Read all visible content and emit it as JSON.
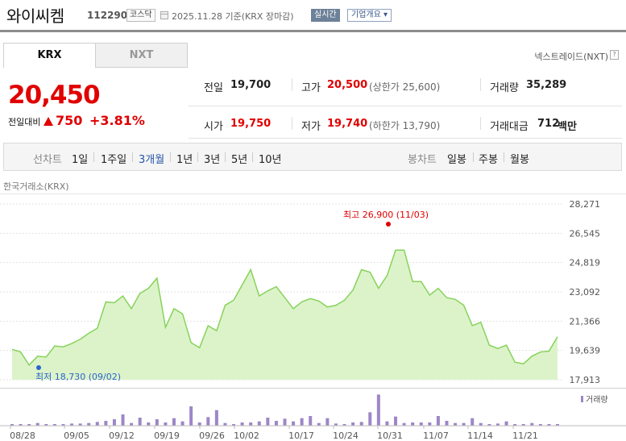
{
  "header": {
    "title": "와이씨켐",
    "code": "112290",
    "market": "코스닥",
    "date": "2025.11.28  기준(KRX 장마감)",
    "realtime": "실시간",
    "company": "기업개요"
  },
  "tabs": {
    "krx": "KRX",
    "nxt": "NXT",
    "nextrade": "넥스트레이드(NXT)"
  },
  "price": {
    "current": "20,450",
    "change_label": "전일대비",
    "change_value": "750",
    "change_rate": "+3.81%"
  },
  "summary": {
    "prev_label": "전일",
    "prev_value": "19,700",
    "high_label": "고가",
    "high_value": "20,500",
    "upper_limit": "(상한가 25,600)",
    "volume_label": "거래량",
    "volume_value": "35,289",
    "open_label": "시가",
    "open_value": "19,750",
    "low_label": "저가",
    "low_value": "19,740",
    "lower_limit": "(하한가 13,790)",
    "amount_label": "거래대금",
    "amount_value": "712",
    "amount_unit": "백만"
  },
  "period": {
    "line_label": "선차트",
    "line_options": [
      "1일",
      "1주일",
      "3개월",
      "1년",
      "3년",
      "5년",
      "10년"
    ],
    "active_line": "3개월",
    "candle_label": "봉차트",
    "candle_options": [
      "일봉",
      "주봉",
      "월봉"
    ]
  },
  "chart_source": "한국거래소(KRX)",
  "colors": {
    "up": "#e00000",
    "line": "#86d35a",
    "area": "#dcf3ca",
    "volume": "#9d86c8",
    "low_marker": "#2a66c8"
  },
  "chart_data": {
    "type": "area",
    "y_ticks": [
      "28,271",
      "26,545",
      "24,819",
      "23,092",
      "21,366",
      "19,639",
      "17,913"
    ],
    "ylim": [
      17913,
      28271
    ],
    "x_tick_labels": [
      "08/28",
      "09/05",
      "09/12",
      "09/19",
      "09/26",
      "10/02",
      "10/17",
      "10/24",
      "10/31",
      "11/07",
      "11/14",
      "11/21"
    ],
    "high_annotation": "최고 26,900 (11/03)",
    "low_annotation": "최저 18,730 (09/02)",
    "volume_legend": "거래량",
    "price_series": [
      19700,
      19550,
      18780,
      19300,
      19250,
      19900,
      19850,
      20050,
      20300,
      20650,
      20950,
      22500,
      22450,
      22850,
      22100,
      23000,
      23300,
      23900,
      21000,
      22100,
      21800,
      20100,
      19800,
      21100,
      20800,
      22300,
      22600,
      23500,
      24400,
      22850,
      23150,
      23400,
      22750,
      22100,
      22500,
      22700,
      22550,
      22200,
      22300,
      22600,
      23200,
      24400,
      24250,
      23300,
      24050,
      25550,
      25550,
      23700,
      23700,
      22900,
      23300,
      22750,
      22650,
      22300,
      21100,
      21300,
      19950,
      19750,
      19950,
      18950,
      18850,
      19300,
      19550,
      19600,
      20450
    ],
    "volume_series": [
      0.03,
      0.03,
      0.03,
      0.05,
      0.03,
      0.03,
      0.03,
      0.04,
      0.04,
      0.05,
      0.07,
      0.09,
      0.12,
      0.21,
      0.05,
      0.15,
      0.06,
      0.12,
      0.06,
      0.14,
      0.08,
      0.36,
      0.06,
      0.16,
      0.29,
      0.05,
      0.03,
      0.06,
      0.06,
      0.08,
      0.15,
      0.09,
      0.13,
      0.08,
      0.14,
      0.18,
      0.05,
      0.14,
      0.04,
      0.03,
      0.06,
      0.07,
      0.25,
      0.58,
      0.08,
      0.17,
      0.05,
      0.06,
      0.06,
      0.06,
      0.18,
      0.09,
      0.05,
      0.05,
      0.14,
      0.05,
      0.03,
      0.04,
      0.08,
      0.03,
      0.03,
      0.05,
      0.03,
      0.03,
      0.03
    ]
  }
}
